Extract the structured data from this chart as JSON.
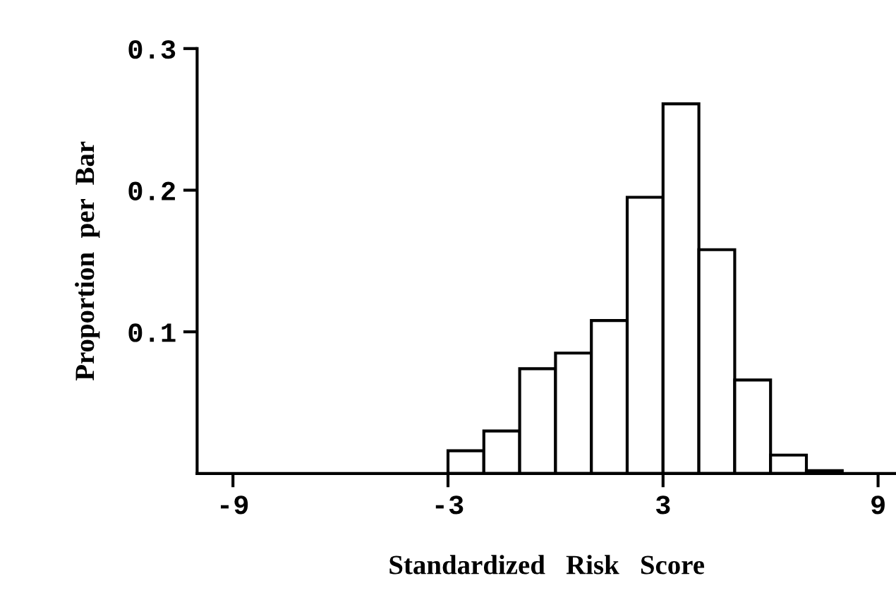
{
  "chart_data": {
    "type": "histogram",
    "xlabel": "Standardized   Risk   Score",
    "ylabel": "Proportion  per  Bar",
    "bins": [
      -3,
      -2,
      -1,
      0,
      1,
      2,
      3,
      4,
      5,
      6,
      7,
      8
    ],
    "values": [
      0.016,
      0.03,
      0.074,
      0.085,
      0.108,
      0.195,
      0.261,
      0.158,
      0.066,
      0.013,
      0.002
    ],
    "color": "#ffffff",
    "xlim": [
      -10,
      9.5
    ],
    "xticks": [
      -9,
      -3,
      3,
      9
    ],
    "ylim": [
      0,
      0.3
    ],
    "yticks": [
      0.1,
      0.2,
      0.3
    ],
    "grid": false
  }
}
